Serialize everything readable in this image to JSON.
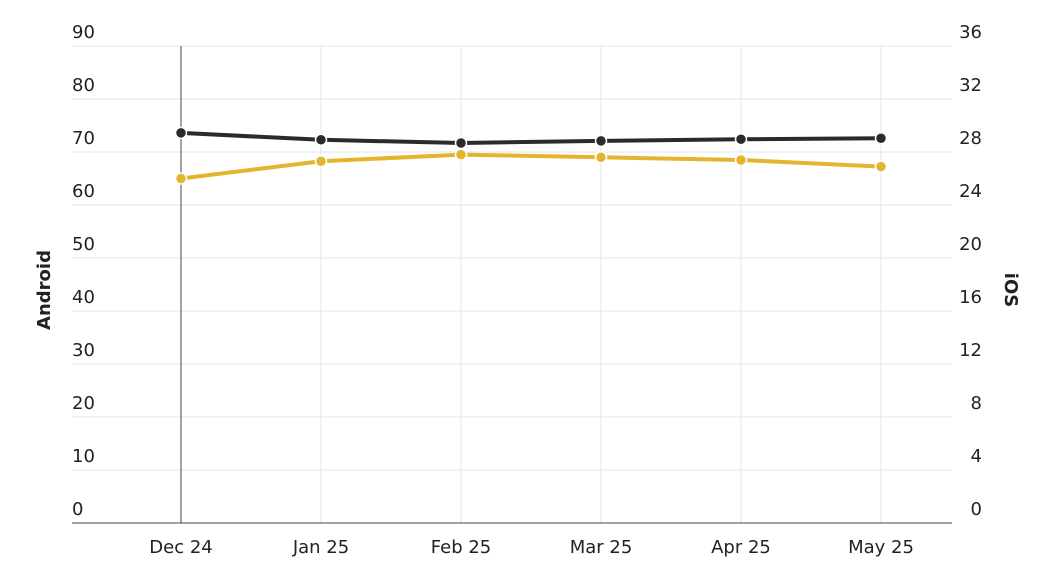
{
  "chart_data": {
    "type": "line",
    "categories": [
      "Dec 24",
      "Jan 25",
      "Feb 25",
      "Mar 25",
      "Apr 25",
      "May 25"
    ],
    "series": [
      {
        "color": "#2b2b2b",
        "values": [
          73.6,
          72.3,
          71.7,
          72.1,
          72.4,
          72.6
        ]
      },
      {
        "color": "#e3b52f",
        "axis": "y2",
        "values": [
          26.0,
          27.3,
          27.8,
          27.6,
          27.4,
          26.9
        ]
      }
    ],
    "y_label": "Android",
    "y2_label": "iOS",
    "ylim": [
      0,
      90
    ],
    "yticks": [
      0,
      10,
      20,
      30,
      40,
      50,
      60,
      70,
      80,
      90
    ],
    "y2lim": [
      0,
      36
    ],
    "y2ticks": [
      0,
      4,
      8,
      12,
      16,
      20,
      24,
      28,
      32,
      36
    ],
    "grid": true
  }
}
